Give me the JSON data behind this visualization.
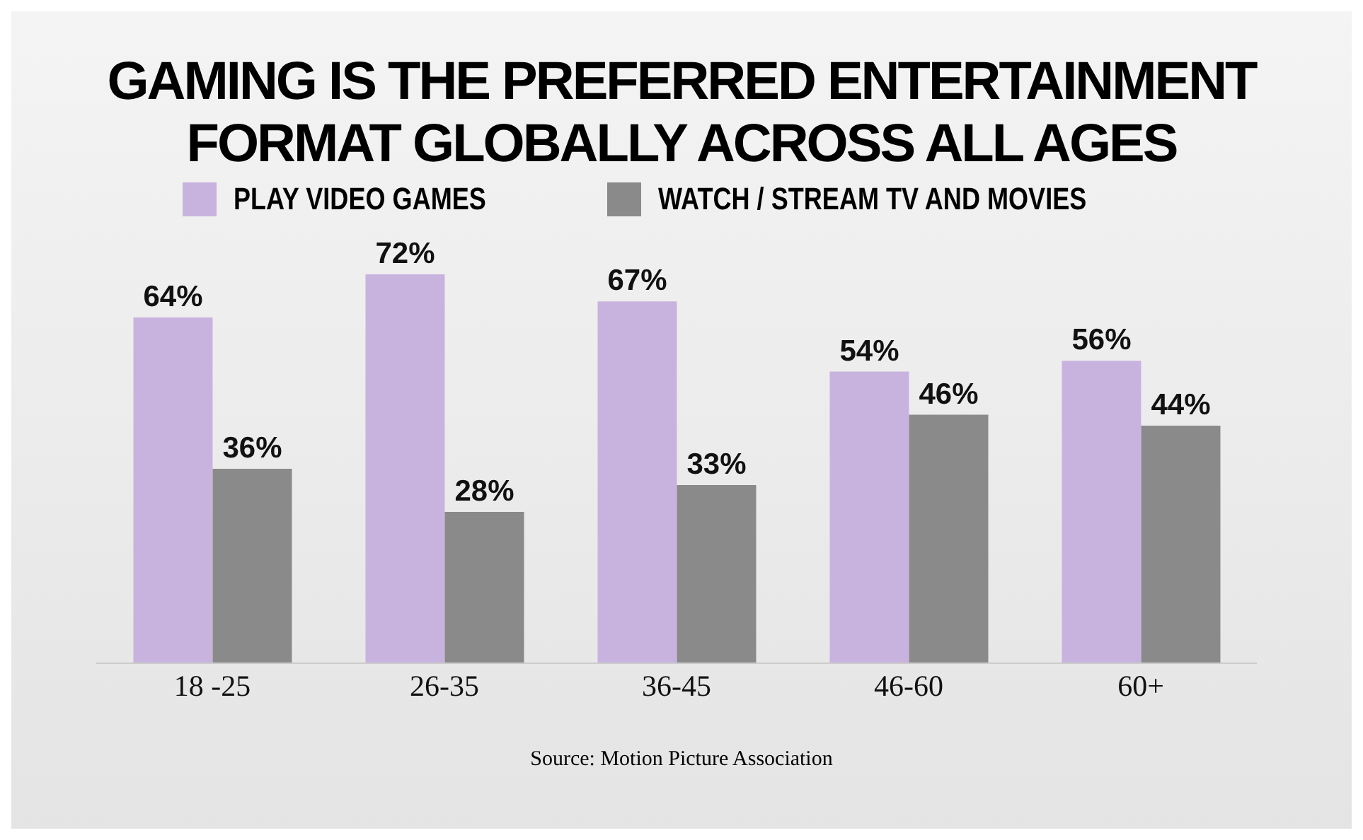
{
  "chart_data": {
    "type": "bar",
    "title": "GAMING IS THE PREFERRED ENTERTAINMENT FORMAT GLOBALLY ACROSS ALL AGES",
    "categories": [
      "18 -25",
      "26-35",
      "36-45",
      "46-60",
      "60+"
    ],
    "legend": "top",
    "grid": false,
    "series": [
      {
        "name": "PLAY VIDEO GAMES",
        "color": "#c8b3de",
        "values": [
          64,
          72,
          67,
          54,
          56
        ],
        "value_labels": [
          "64%",
          "72%",
          "67%",
          "54%",
          "56%"
        ]
      },
      {
        "name": "WATCH / STREAM TV AND MOVIES",
        "color": "#8a8a8a",
        "values": [
          36,
          28,
          33,
          46,
          44
        ],
        "value_labels": [
          "36%",
          "28%",
          "33%",
          "46%",
          "44%"
        ]
      }
    ],
    "annotations": [
      "Source: Motion Picture Association"
    ]
  }
}
